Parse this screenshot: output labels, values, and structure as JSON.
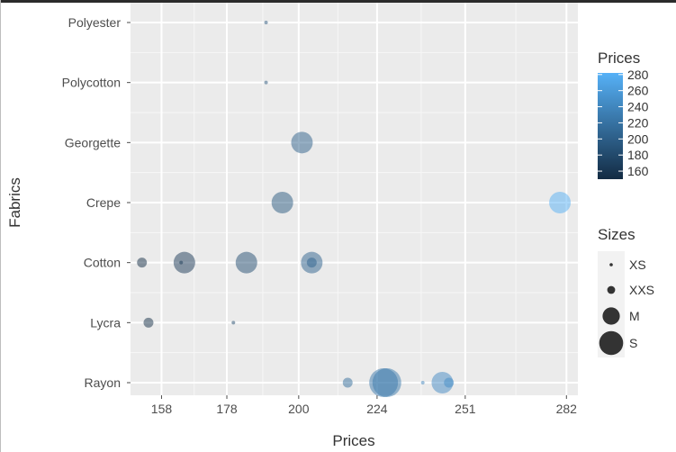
{
  "chart_data": {
    "type": "scatter",
    "xlabel": "Prices",
    "ylabel": "Fabrics",
    "x_tick_labels": [
      "158",
      "178",
      "200",
      "224",
      "251",
      "282"
    ],
    "x_tick_values": [
      158,
      178,
      200,
      224,
      251,
      282
    ],
    "xlim": [
      148.5,
      285.5
    ],
    "categories": [
      "Rayon",
      "Lycra",
      "Cotton",
      "Crepe",
      "Georgette",
      "Polycotton",
      "Polyester"
    ],
    "grid": true,
    "color_legend": {
      "title": "Prices",
      "range": [
        150,
        282
      ],
      "ticks": [
        "160",
        "180",
        "200",
        "220",
        "240",
        "260",
        "280"
      ],
      "tick_values": [
        160,
        180,
        200,
        220,
        240,
        260,
        280
      ],
      "low_color": "#132b43",
      "high_color": "#56b1f7"
    },
    "size_legend": {
      "title": "Sizes",
      "entries": [
        "XS",
        "XXS",
        "M",
        "S"
      ]
    },
    "points": [
      {
        "fabric": "Polyester",
        "price": 190,
        "size": "XS"
      },
      {
        "fabric": "Polycotton",
        "price": 190,
        "size": "XS"
      },
      {
        "fabric": "Georgette",
        "price": 201,
        "size": "M"
      },
      {
        "fabric": "Crepe",
        "price": 195,
        "size": "M"
      },
      {
        "fabric": "Crepe",
        "price": 280,
        "size": "M"
      },
      {
        "fabric": "Cotton",
        "price": 152,
        "size": "XXS"
      },
      {
        "fabric": "Cotton",
        "price": 165,
        "size": "M"
      },
      {
        "fabric": "Cotton",
        "price": 164,
        "size": "XS"
      },
      {
        "fabric": "Cotton",
        "price": 184,
        "size": "M"
      },
      {
        "fabric": "Cotton",
        "price": 204,
        "size": "M"
      },
      {
        "fabric": "Cotton",
        "price": 204,
        "size": "XXS"
      },
      {
        "fabric": "Lycra",
        "price": 154,
        "size": "XXS"
      },
      {
        "fabric": "Lycra",
        "price": 180,
        "size": "XS"
      },
      {
        "fabric": "Rayon",
        "price": 215,
        "size": "XXS"
      },
      {
        "fabric": "Rayon",
        "price": 226,
        "size": "S"
      },
      {
        "fabric": "Rayon",
        "price": 227,
        "size": "S"
      },
      {
        "fabric": "Rayon",
        "price": 238,
        "size": "XS"
      },
      {
        "fabric": "Rayon",
        "price": 244,
        "size": "M"
      },
      {
        "fabric": "Rayon",
        "price": 246,
        "size": "XXS"
      }
    ]
  }
}
